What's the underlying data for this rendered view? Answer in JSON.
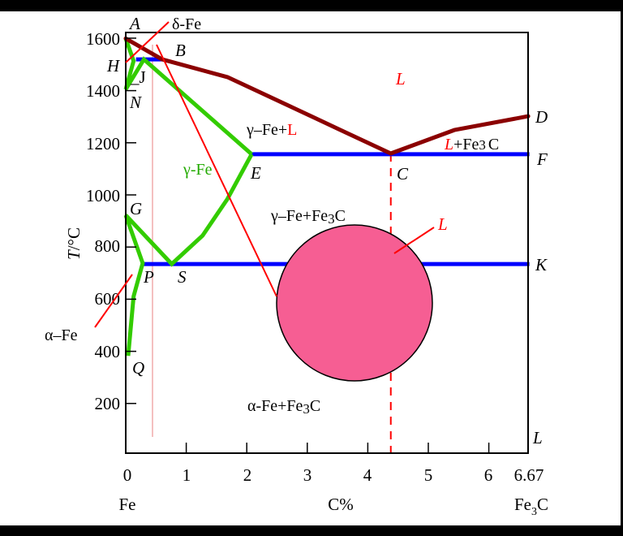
{
  "axes": {
    "y_label_var": "T",
    "y_label_unit": "/°C",
    "y_ticks": [
      1600,
      1400,
      1200,
      1000,
      800,
      600,
      400,
      200
    ],
    "x_ticks": [
      "0",
      "1",
      "2",
      "3",
      "4",
      "5",
      "6",
      "6.67"
    ],
    "x_minor_ticks": [
      1,
      2,
      3,
      4,
      5,
      6
    ],
    "x_label": "C%",
    "x_left_label": "Fe",
    "x_right_label": {
      "base": "Fe",
      "sub": "3",
      "tail": "C"
    },
    "x_range": [
      0,
      6.67
    ],
    "y_range": [
      0,
      1620
    ]
  },
  "points": {
    "A": "A",
    "H": "H",
    "J": "J",
    "B": "B",
    "N": "N",
    "D": "D",
    "F": "F",
    "C": "C",
    "E": "E",
    "G": "G",
    "P": "P",
    "S": "S",
    "K": "K",
    "Q": "Q",
    "L": "L"
  },
  "phases": {
    "liquid": "L",
    "delta_fe": "δ-Fe",
    "gamma_fe": "γ-Fe",
    "gamma_plus_l": {
      "a": "γ–Fe+",
      "b": "L"
    },
    "l_plus_fe3c": {
      "a": "L",
      "b": "+Fe",
      "sub": "3",
      "c": "C"
    },
    "gamma_plus_fe3c": {
      "a": "γ–Fe+Fe",
      "sub": "3",
      "c": "C"
    },
    "alpha_plus_fe3c": {
      "a": "α-Fe+Fe",
      "sub": "3",
      "c": "C"
    },
    "alpha_fe": "α–Fe",
    "magnified_label": "L"
  },
  "colors": {
    "liquidus": "#8b0000",
    "solvus": "#33cc00",
    "isotherm": "#0000ff",
    "pointer": "#ff0000",
    "circle_fill": "#f65e93",
    "guide_line": "#f4c0c0"
  },
  "lines": {
    "liquidus": [
      [
        0,
        1600
      ],
      [
        0.6,
        1520
      ],
      [
        1.68,
        1452
      ],
      [
        2.75,
        1336
      ],
      [
        3.55,
        1249
      ],
      [
        4.38,
        1159
      ],
      [
        5.43,
        1249
      ],
      [
        6.65,
        1302
      ]
    ],
    "green": [
      [
        [
          0,
          1600
        ],
        [
          0.13,
          1514
        ],
        [
          0,
          1405
        ],
        [
          0.3,
          1520
        ],
        [
          2.08,
          1156
        ]
      ],
      [
        [
          2.08,
          1156
        ],
        [
          1.68,
          984
        ],
        [
          1.27,
          844
        ],
        [
          0.76,
          735
        ],
        [
          0,
          922
        ],
        [
          0.28,
          738
        ],
        [
          0.13,
          611
        ],
        [
          0.04,
          383
        ]
      ]
    ],
    "isotherms": [
      [
        [
          0.17,
          1520
        ],
        [
          0.6,
          1520
        ]
      ],
      [
        [
          2.08,
          1156
        ],
        [
          6.67,
          1156
        ]
      ],
      [
        [
          0.28,
          735
        ],
        [
          6.67,
          735
        ]
      ]
    ],
    "eutectic_dashed_x": 4.38
  }
}
